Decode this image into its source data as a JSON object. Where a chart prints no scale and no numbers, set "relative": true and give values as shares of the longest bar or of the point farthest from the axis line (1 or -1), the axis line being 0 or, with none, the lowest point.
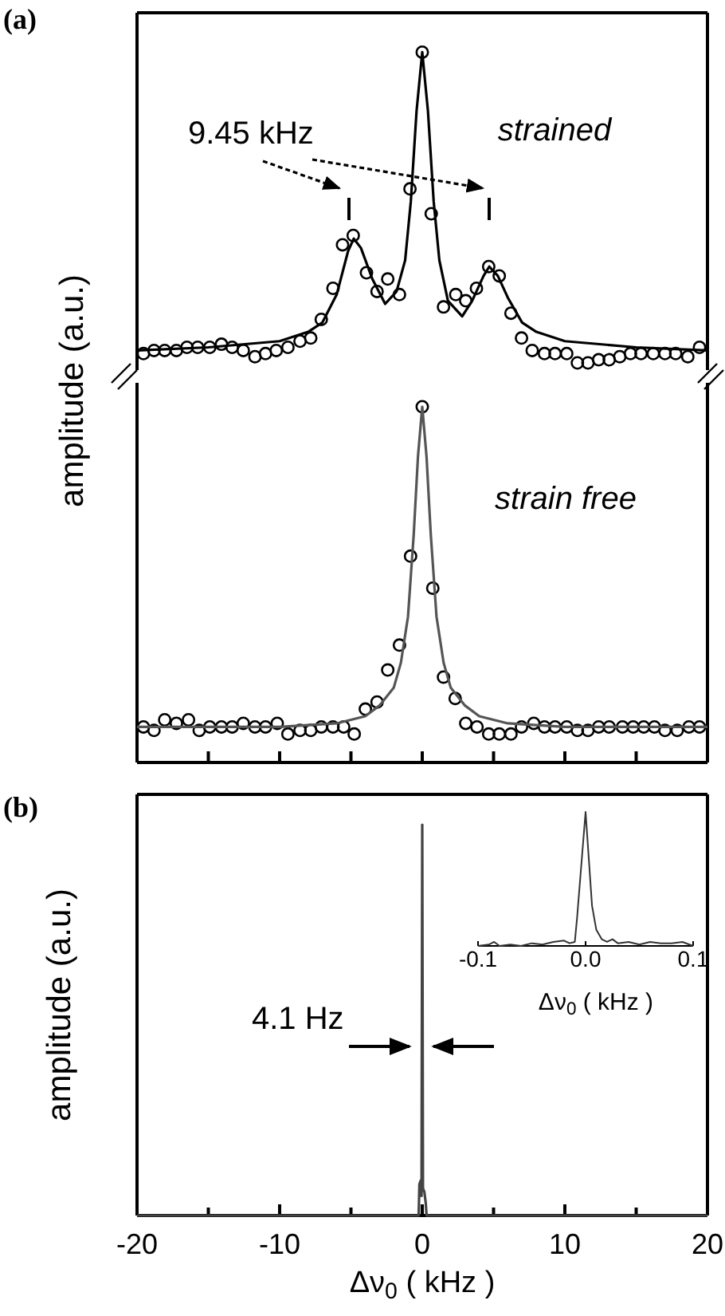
{
  "chart_data": [
    {
      "type": "scatter",
      "title": "(a)",
      "ylabel": "amplitude (a.u.)",
      "relative": true,
      "xlim": [
        -20,
        20
      ],
      "tick_labels": false,
      "annotations": [
        "9.45 kHz",
        "strained"
      ],
      "series": [
        {
          "marker": "circle",
          "color": "#000000",
          "x": [
            -19.55,
            -18.81,
            -18.06,
            -17.24,
            -16.5,
            -15.75,
            -14.9,
            -14.08,
            -13.33,
            -12.55,
            -11.73,
            -10.99,
            -10.24,
            -9.42,
            -8.57,
            -7.82,
            -7.08,
            -6.26,
            -5.59,
            -4.84,
            -3.91,
            -3.17,
            -2.42,
            -1.6,
            -0.86,
            0,
            0.63,
            1.49,
            2.35,
            3.05,
            3.8,
            4.66,
            5.4,
            6.22,
            6.96,
            7.71,
            8.57,
            9.31,
            10.13,
            10.88,
            11.62,
            12.37,
            13.11,
            13.85,
            14.6,
            15.34,
            16.2,
            17.02,
            17.77,
            18.62,
            19.44
          ],
          "values": [
            0.03,
            0.04,
            0.04,
            0.04,
            0.05,
            0.05,
            0.05,
            0.06,
            0.05,
            0.04,
            0.02,
            0.03,
            0.04,
            0.05,
            0.07,
            0.08,
            0.14,
            0.24,
            0.38,
            0.41,
            0.29,
            0.23,
            0.27,
            0.22,
            0.56,
            1,
            0.48,
            0.18,
            0.22,
            0.2,
            0.24,
            0.31,
            0.28,
            0.16,
            0.08,
            0.04,
            0.03,
            0.03,
            0.03,
            0,
            0,
            0.01,
            0.01,
            0.02,
            0.03,
            0.03,
            0.03,
            0.03,
            0.03,
            0.02,
            0.05
          ]
        },
        {
          "type": "line",
          "color": "#000000",
          "x": [
            -20,
            -15,
            -10,
            -8,
            -7,
            -6,
            -5.2,
            -4.8,
            -4.3,
            -3.5,
            -2.6,
            -1.8,
            -1.2,
            -0.8,
            -0.4,
            0,
            0.4,
            0.8,
            1.2,
            1.8,
            2.8,
            3.5,
            4.3,
            4.7,
            5.3,
            6,
            7,
            8,
            10,
            15,
            20
          ],
          "values": [
            0.04,
            0.05,
            0.07,
            0.1,
            0.13,
            0.22,
            0.36,
            0.4,
            0.37,
            0.27,
            0.19,
            0.23,
            0.33,
            0.52,
            0.81,
            1,
            0.81,
            0.52,
            0.33,
            0.2,
            0.15,
            0.2,
            0.28,
            0.31,
            0.28,
            0.21,
            0.13,
            0.1,
            0.07,
            0.05,
            0.04
          ]
        }
      ]
    },
    {
      "type": "scatter",
      "relative": true,
      "xlim": [
        -20,
        20
      ],
      "xticks": [
        {
          "value": -20,
          "label": null
        },
        {
          "value": -15,
          "label": null
        },
        {
          "value": -10,
          "label": null
        },
        {
          "value": -5,
          "label": null
        },
        {
          "value": 0,
          "label": null
        },
        {
          "value": 5,
          "label": null
        },
        {
          "value": 10,
          "label": null
        },
        {
          "value": 15,
          "label": null
        },
        {
          "value": 20,
          "label": null
        }
      ],
      "tick_labels": false,
      "annotations": [
        "strain free"
      ],
      "series": [
        {
          "marker": "circle",
          "color": "#000000",
          "x": [
            -19.55,
            -18.81,
            -18.06,
            -17.24,
            -16.39,
            -15.64,
            -14.9,
            -14.08,
            -13.33,
            -12.55,
            -11.73,
            -10.99,
            -10.17,
            -9.42,
            -8.57,
            -7.82,
            -7.08,
            -6.26,
            -5.51,
            -4.77,
            -3.99,
            -3.17,
            -2.42,
            -1.6,
            -0.82,
            0,
            0.74,
            1.49,
            2.31,
            3.05,
            3.84,
            4.66,
            5.4,
            6.22,
            6.96,
            7.82,
            8.57,
            9.31,
            10.13,
            10.88,
            11.62,
            12.37,
            13.11,
            14.04,
            14.79,
            15.53,
            16.28,
            17.02,
            17.88,
            18.7,
            19.44
          ],
          "values": [
            0.1,
            0.09,
            0.12,
            0.11,
            0.12,
            0.09,
            0.1,
            0.1,
            0.1,
            0.11,
            0.1,
            0.1,
            0.11,
            0.08,
            0.09,
            0.09,
            0.1,
            0.1,
            0.1,
            0.08,
            0.15,
            0.17,
            0.26,
            0.33,
            0.58,
            1,
            0.49,
            0.24,
            0.18,
            0.11,
            0.1,
            0.08,
            0.08,
            0.08,
            0.1,
            0.11,
            0.1,
            0.1,
            0.1,
            0.09,
            0.09,
            0.1,
            0.1,
            0.1,
            0.1,
            0.1,
            0.1,
            0.09,
            0.09,
            0.1,
            0.1
          ]
        },
        {
          "type": "line",
          "color": "#555555",
          "x": [
            -20,
            -10,
            -6,
            -4,
            -3,
            -2,
            -1.5,
            -1,
            -0.6,
            -0.3,
            0,
            0.3,
            0.6,
            1,
            1.5,
            2,
            3,
            4,
            6,
            10,
            20
          ],
          "values": [
            0.1,
            0.1,
            0.11,
            0.13,
            0.16,
            0.21,
            0.28,
            0.41,
            0.64,
            0.86,
            1,
            0.86,
            0.64,
            0.41,
            0.28,
            0.21,
            0.16,
            0.13,
            0.11,
            0.1,
            0.1
          ]
        }
      ]
    },
    {
      "type": "line",
      "title": "(b)",
      "ylabel": "amplitude (a.u.)",
      "xlabel": "Δν$_{0}$  ( kHz )",
      "relative": true,
      "xlim": [
        -20,
        20
      ],
      "xticks": [
        -20,
        {
          "value": -15,
          "label": null
        },
        -10,
        {
          "value": -5,
          "label": null
        },
        0,
        {
          "value": 5,
          "label": null
        },
        10,
        {
          "value": 15,
          "label": null
        },
        20
      ],
      "tick_labels": "x",
      "annotations": [
        "4.1 Hz"
      ],
      "series": [
        {
          "color": "#444444",
          "x": [
            -20,
            -11,
            -0.25,
            -0.2,
            -0.1,
            -0.05,
            0,
            0.05,
            0.15,
            0.25,
            0.3,
            20
          ],
          "values": [
            0,
            0,
            0,
            0.08,
            0.09,
            0.05,
            1,
            0.07,
            0.06,
            0.03,
            0,
            0
          ]
        }
      ]
    },
    {
      "type": "line",
      "xlabel": "Δν$_{0}$  ( kHz )",
      "relative": true,
      "xlim": [
        -0.1,
        0.1
      ],
      "xticks": [
        -0.1,
        {
          "value": 0,
          "label": "0.0"
        },
        0.1
      ],
      "tick_labels": "x",
      "series": [
        {
          "color": "#333333",
          "x": [
            -0.1,
            -0.09,
            -0.085,
            -0.08,
            -0.07,
            -0.06,
            -0.05,
            -0.04,
            -0.03,
            -0.02,
            -0.015,
            -0.01,
            -0.008,
            0,
            0.006,
            0.01,
            0.015,
            0.02,
            0.025,
            0.03,
            0.04,
            0.05,
            0.06,
            0.07,
            0.08,
            0.09,
            0.1
          ],
          "values": [
            0,
            0.01,
            0.03,
            0,
            0.01,
            0,
            0.02,
            0.01,
            0.03,
            0.04,
            0.02,
            0.03,
            0.2,
            1,
            0.3,
            0.12,
            0.05,
            0.03,
            0.05,
            0.02,
            0.03,
            0.01,
            0.03,
            0.02,
            0.02,
            0.03,
            0
          ]
        }
      ]
    }
  ]
}
